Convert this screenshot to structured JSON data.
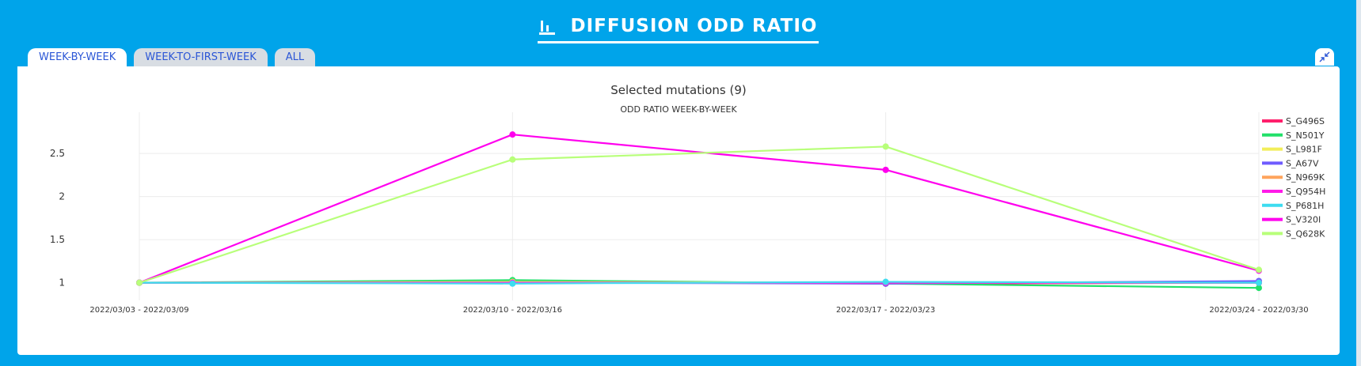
{
  "header": {
    "title": "DIFFUSION ODD RATIO",
    "icon": "bar-chart-icon"
  },
  "tabs": [
    {
      "label": "WEEK-BY-WEEK",
      "active": true
    },
    {
      "label": "WEEK-TO-FIRST-WEEK",
      "active": false
    },
    {
      "label": "ALL",
      "active": false
    }
  ],
  "collapse_icon": "collapse-arrows-icon",
  "chart_data": {
    "type": "line",
    "title": "Selected mutations (9)",
    "subtitle": "ODD RATIO WEEK-BY-WEEK",
    "xlabel": "",
    "ylabel": "",
    "categories": [
      "2022/03/03 - 2022/03/09",
      "2022/03/10 - 2022/03/16",
      "2022/03/17 - 2022/03/23",
      "2022/03/24 - 2022/03/30"
    ],
    "ylim": [
      0.85,
      2.85
    ],
    "yticks": [
      1,
      1.5,
      2,
      2.5
    ],
    "ytick_labels": [
      "1",
      "1.5",
      "2",
      "2.5"
    ],
    "grid": true,
    "legend_position": "right",
    "series": [
      {
        "name": "S_G496S",
        "color": "#ff1f6b",
        "values": [
          1,
          1.01,
          0.99,
          1.0
        ]
      },
      {
        "name": "S_N501Y",
        "color": "#22e06a",
        "values": [
          1,
          1.03,
          0.99,
          0.94
        ]
      },
      {
        "name": "S_L981F",
        "color": "#f2ee5a",
        "values": [
          1,
          1.01,
          1.0,
          1.01
        ]
      },
      {
        "name": "S_A67V",
        "color": "#6f5bff",
        "values": [
          1,
          1.0,
          0.99,
          1.02
        ]
      },
      {
        "name": "S_N969K",
        "color": "#ffa45c",
        "values": [
          1,
          1.0,
          1.0,
          1.0
        ]
      },
      {
        "name": "S_Q954H",
        "color": "#ff1be8",
        "values": [
          1,
          1.0,
          1.0,
          1.0
        ]
      },
      {
        "name": "S_P681H",
        "color": "#3ddcf0",
        "values": [
          1,
          0.99,
          1.01,
          1.0
        ]
      },
      {
        "name": "S_V320I",
        "color": "#ff00ee",
        "values": [
          1,
          2.72,
          2.31,
          1.14
        ]
      },
      {
        "name": "S_Q628K",
        "color": "#b8ff7a",
        "values": [
          1,
          2.43,
          2.58,
          1.15
        ]
      }
    ]
  }
}
